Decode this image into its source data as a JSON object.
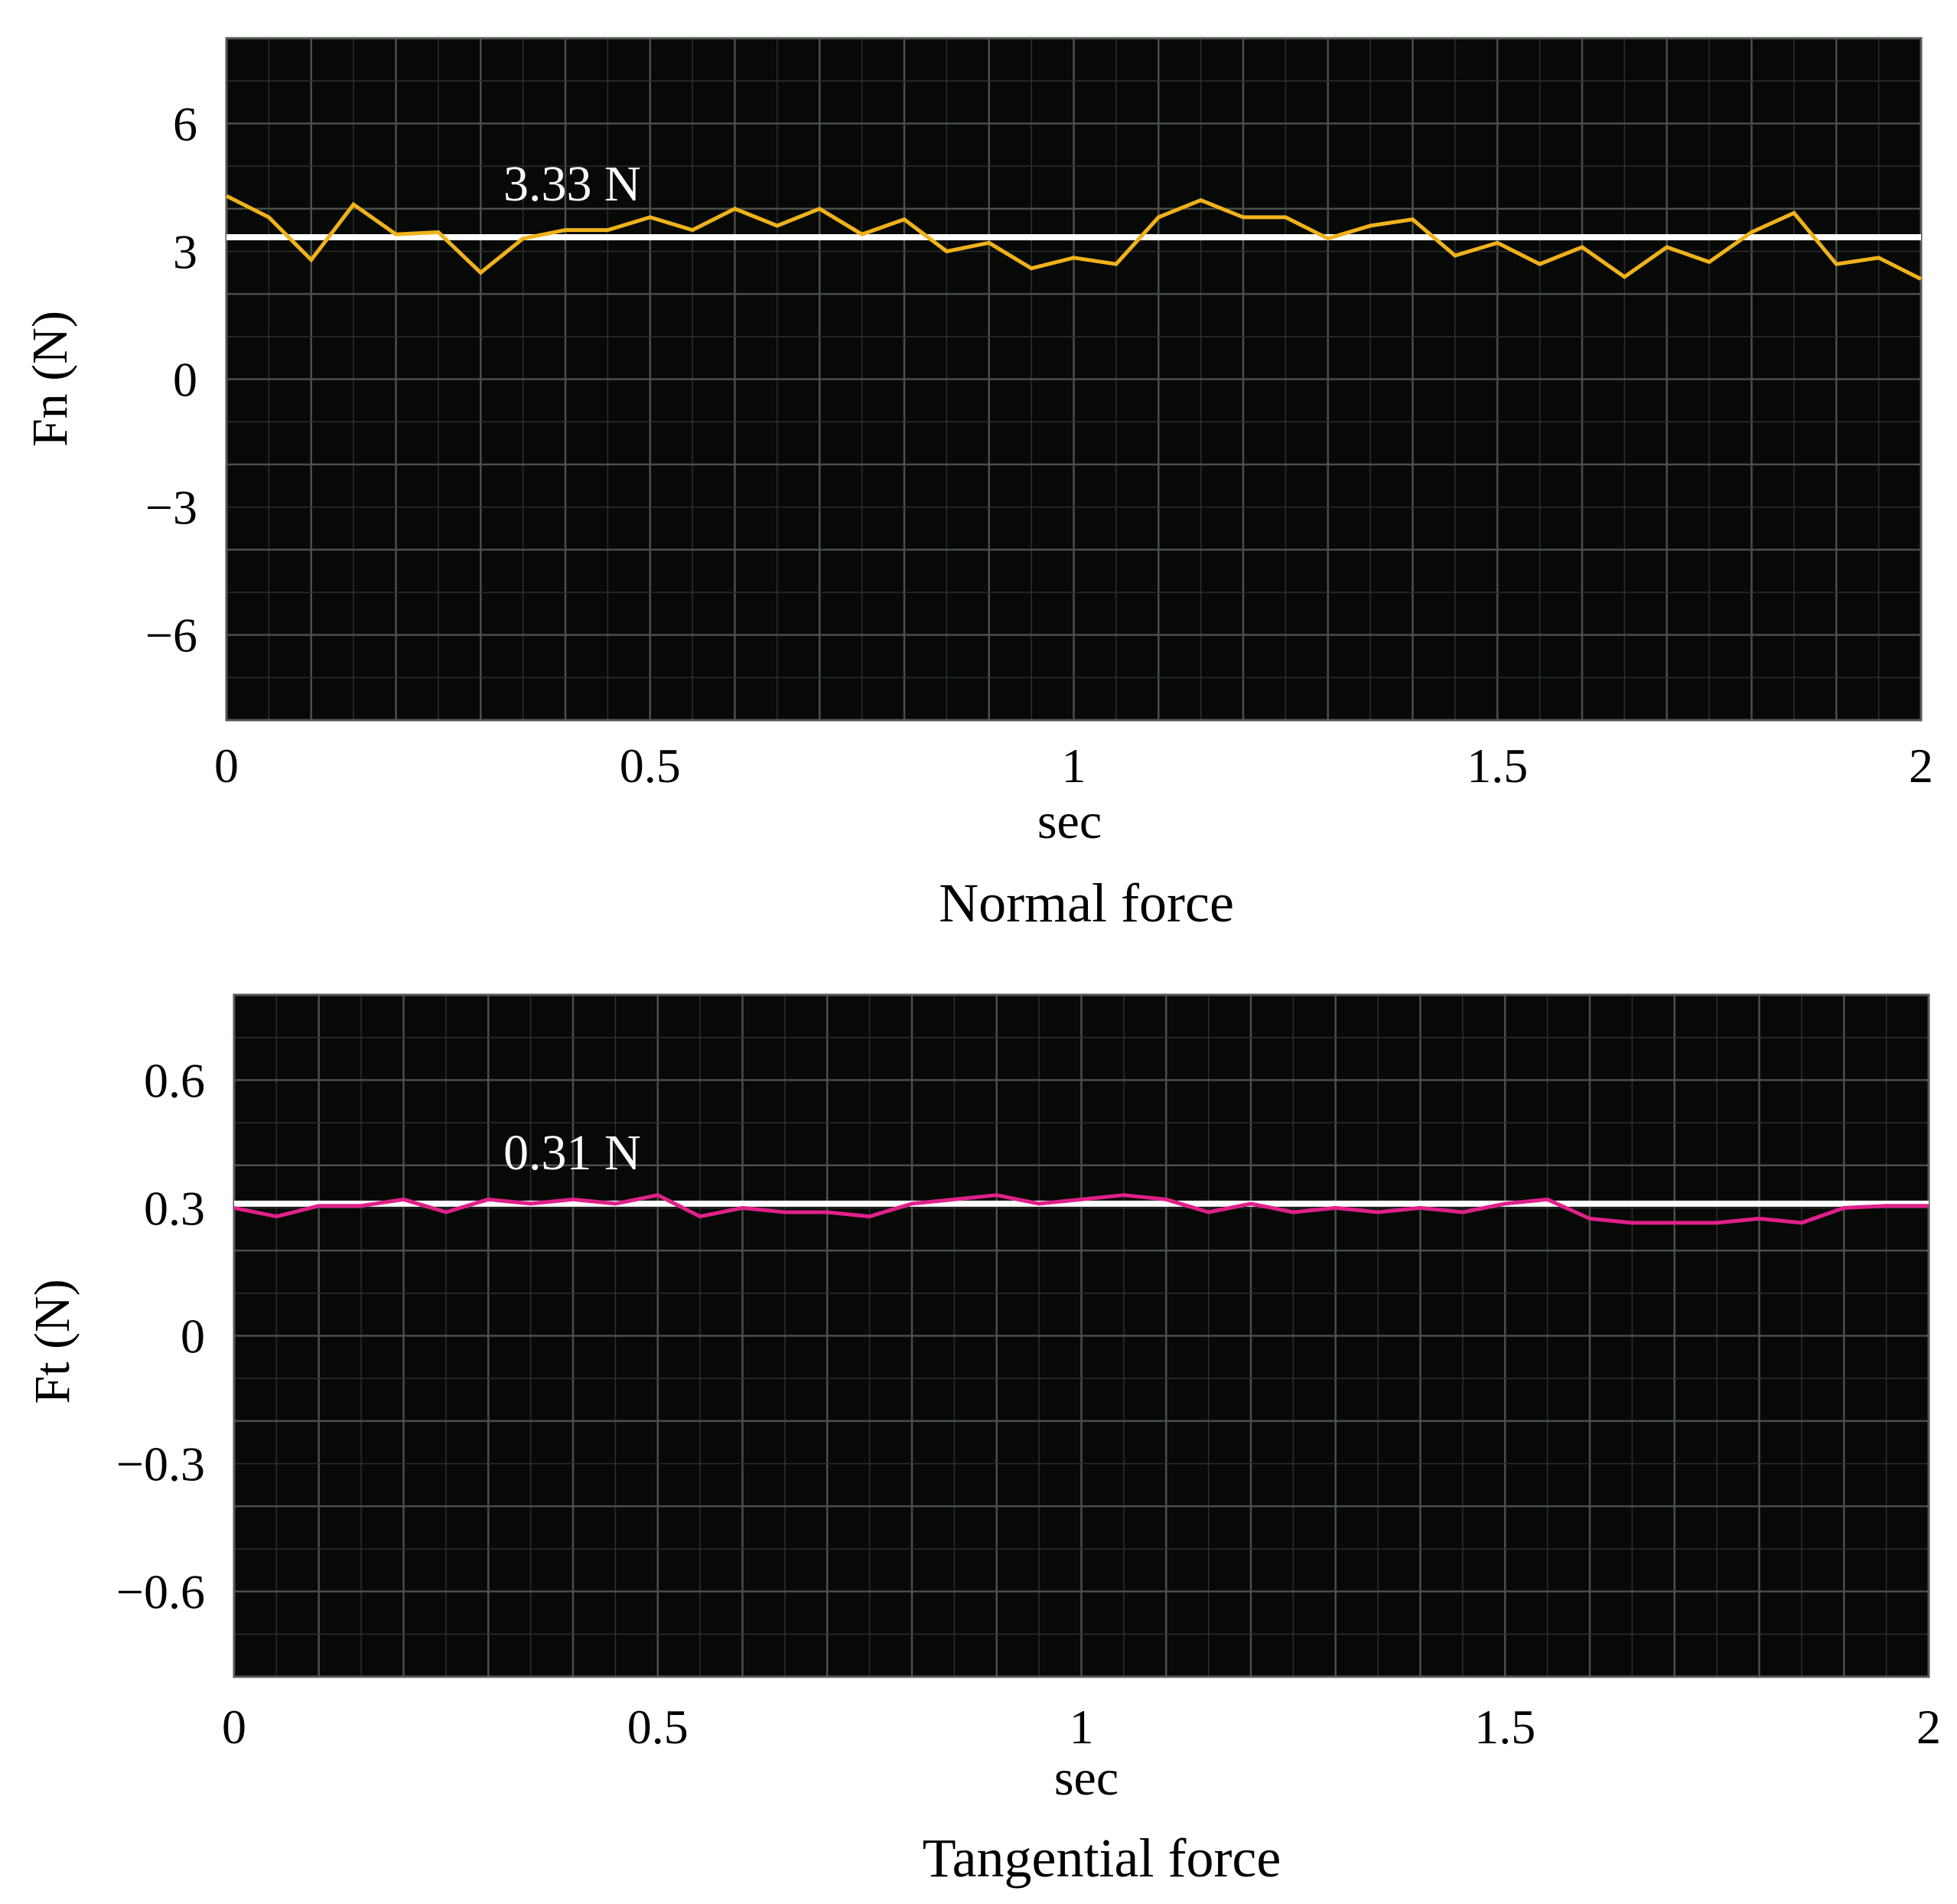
{
  "chart_data": [
    {
      "type": "line",
      "title": "Normal force",
      "xlabel": "sec",
      "ylabel": "Fn (N)",
      "xlim": [
        0,
        2
      ],
      "ylim": [
        -8,
        8
      ],
      "grid": true,
      "background": "#060906",
      "xticks": [
        0,
        0.5,
        1,
        1.5,
        2
      ],
      "xtick_labels": [
        "0",
        "0.5",
        "1",
        "1.5",
        "2"
      ],
      "yticks": [
        6,
        3,
        0,
        -3,
        -6
      ],
      "ytick_labels": [
        "6",
        "3",
        "0",
        "−3",
        "−6"
      ],
      "mean_line": {
        "value": 3.33,
        "label": "3.33 N",
        "color": "#ffffff"
      },
      "series": [
        {
          "color": "#f0b21a",
          "x": [
            0,
            0.05,
            0.1,
            0.15,
            0.2,
            0.25,
            0.3,
            0.35,
            0.4,
            0.45,
            0.5,
            0.55,
            0.6,
            0.65,
            0.7,
            0.75,
            0.8,
            0.85,
            0.9,
            0.95,
            1.0,
            1.05,
            1.1,
            1.15,
            1.2,
            1.25,
            1.3,
            1.35,
            1.4,
            1.45,
            1.5,
            1.55,
            1.6,
            1.65,
            1.7,
            1.75,
            1.8,
            1.85,
            1.9,
            1.95,
            2.0
          ],
          "y": [
            4.3,
            3.8,
            2.8,
            4.1,
            3.4,
            3.45,
            2.5,
            3.3,
            3.5,
            3.5,
            3.8,
            3.5,
            4.0,
            3.6,
            4.0,
            3.4,
            3.75,
            3.0,
            3.2,
            2.6,
            2.85,
            2.7,
            3.8,
            4.2,
            3.8,
            3.8,
            3.3,
            3.6,
            3.75,
            2.9,
            3.2,
            2.7,
            3.1,
            2.4,
            3.1,
            2.75,
            3.45,
            3.9,
            2.7,
            2.85,
            2.35
          ]
        }
      ]
    },
    {
      "type": "line",
      "title": "Tangential force",
      "xlabel": "sec",
      "ylabel": "Ft (N)",
      "xlim": [
        0,
        2
      ],
      "ylim": [
        -0.8,
        0.8
      ],
      "grid": true,
      "background": "#060906",
      "xticks": [
        0,
        0.5,
        1,
        1.5,
        2
      ],
      "xtick_labels": [
        "0",
        "0.5",
        "1",
        "1.5",
        "2"
      ],
      "yticks": [
        0.6,
        0.3,
        0,
        -0.3,
        -0.6
      ],
      "ytick_labels": [
        "0.6",
        "0.3",
        "0",
        "−0.3",
        "−0.6"
      ],
      "mean_line": {
        "value": 0.31,
        "label": "0.31 N",
        "color": "#ffffff"
      },
      "series": [
        {
          "color": "#e0208a",
          "x": [
            0,
            0.05,
            0.1,
            0.15,
            0.2,
            0.25,
            0.3,
            0.35,
            0.4,
            0.45,
            0.5,
            0.55,
            0.6,
            0.65,
            0.7,
            0.75,
            0.8,
            0.85,
            0.9,
            0.95,
            1.0,
            1.05,
            1.1,
            1.15,
            1.2,
            1.25,
            1.3,
            1.35,
            1.4,
            1.45,
            1.5,
            1.55,
            1.6,
            1.65,
            1.7,
            1.75,
            1.8,
            1.85,
            1.9,
            1.95,
            2.0
          ],
          "y": [
            0.3,
            0.28,
            0.305,
            0.305,
            0.32,
            0.29,
            0.32,
            0.31,
            0.32,
            0.31,
            0.33,
            0.28,
            0.3,
            0.29,
            0.29,
            0.28,
            0.31,
            0.32,
            0.33,
            0.31,
            0.32,
            0.33,
            0.32,
            0.29,
            0.31,
            0.29,
            0.3,
            0.29,
            0.3,
            0.29,
            0.31,
            0.32,
            0.275,
            0.265,
            0.265,
            0.265,
            0.275,
            0.265,
            0.3,
            0.305,
            0.305
          ]
        }
      ]
    }
  ]
}
